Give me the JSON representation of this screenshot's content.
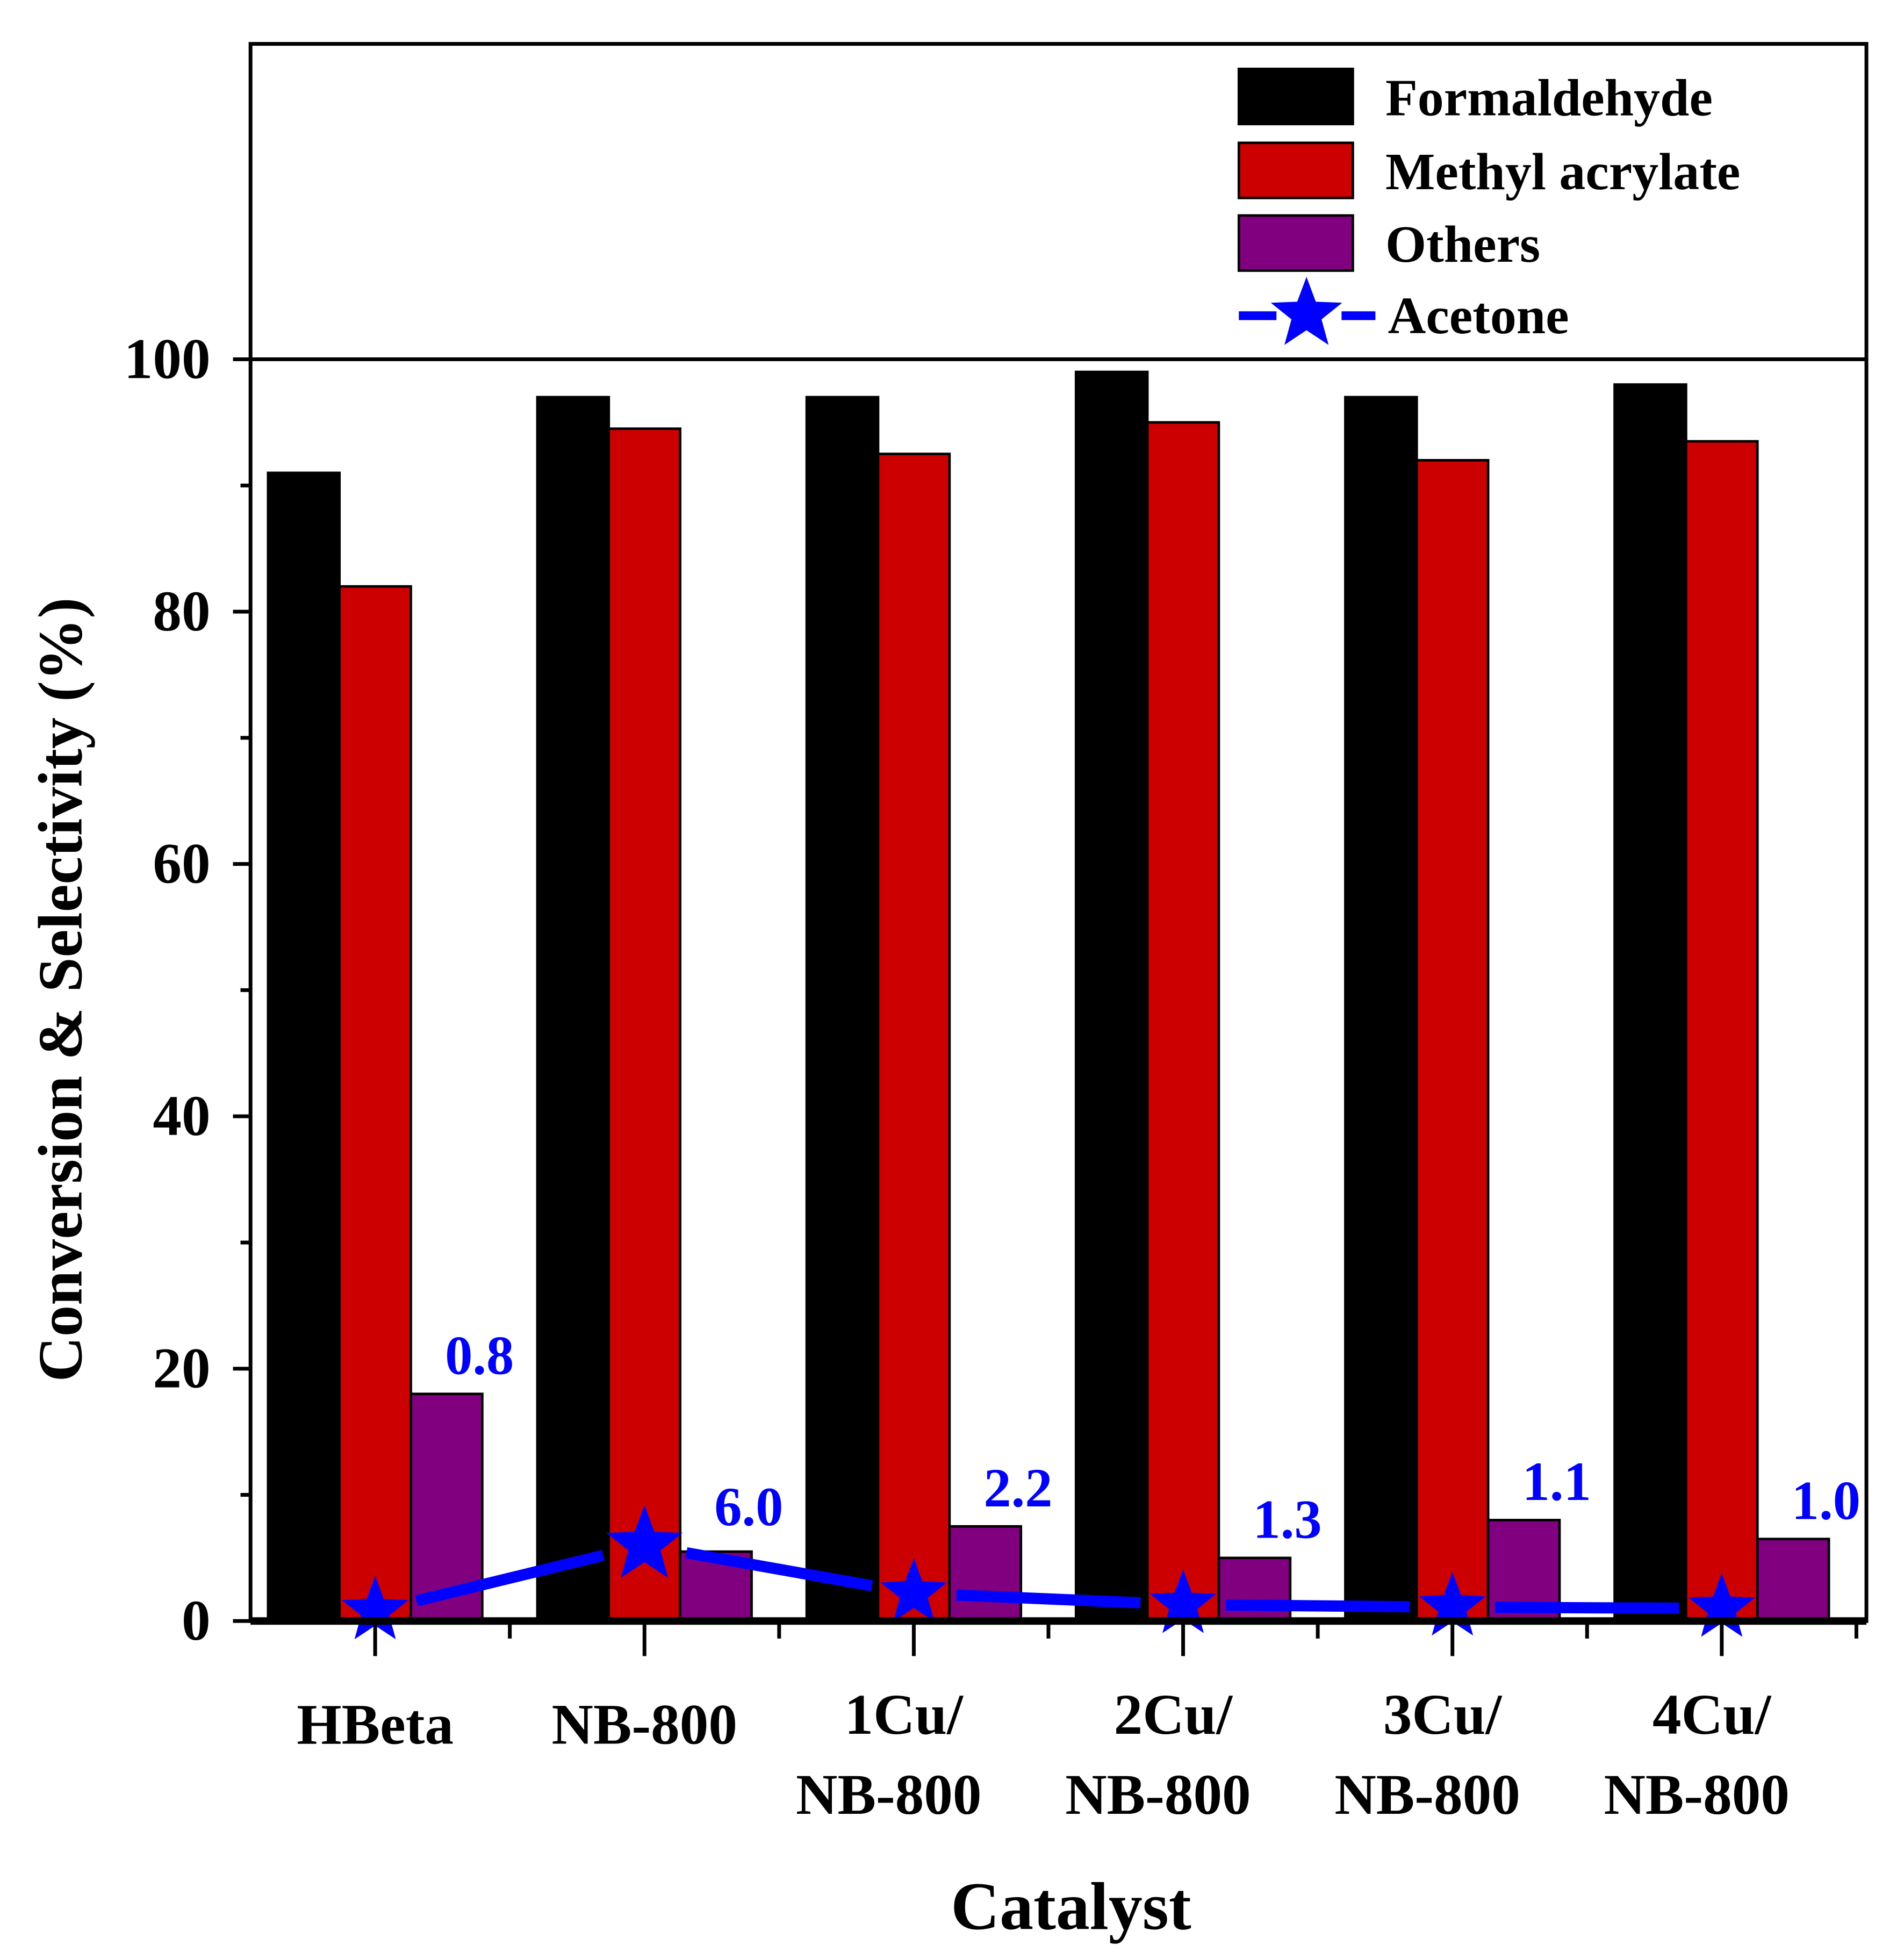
{
  "chart_data": {
    "type": "bar",
    "xlabel": "Catalyst",
    "ylabel": "Conversion & Selectivity (%)",
    "ylim": [
      0,
      125
    ],
    "yticks": [
      "0",
      "20",
      "40",
      "60",
      "80",
      "100"
    ],
    "categories": [
      [
        "HBeta"
      ],
      [
        "NB-800"
      ],
      [
        "1Cu/",
        "NB-800"
      ],
      [
        "2Cu/",
        "NB-800"
      ],
      [
        "3Cu/",
        "NB-800"
      ],
      [
        "4Cu/",
        "NB-800"
      ]
    ],
    "series": [
      {
        "name": "Formaldehyde",
        "kind": "bar",
        "color": "#000000",
        "values": [
          91,
          97,
          97,
          99,
          97,
          98
        ]
      },
      {
        "name": "Methyl acrylate",
        "kind": "bar",
        "color": "#cc0000",
        "values": [
          82,
          94.5,
          92.5,
          95,
          92,
          93.5
        ]
      },
      {
        "name": "Others",
        "kind": "bar",
        "color": "#800080",
        "values": [
          18,
          5.5,
          7.5,
          5,
          8,
          6.5
        ]
      },
      {
        "name": "Acetone",
        "kind": "line-star",
        "color": "#0000ff",
        "values": [
          0.8,
          6.0,
          2.2,
          1.3,
          1.1,
          1.0
        ],
        "labels": [
          "0.8",
          "6.0",
          "2.2",
          "1.3",
          "1.1",
          "1.0"
        ]
      }
    ],
    "legend": "top-right",
    "grid": false
  }
}
